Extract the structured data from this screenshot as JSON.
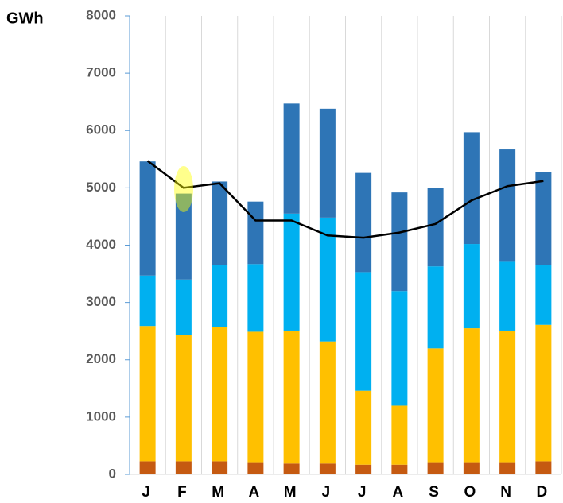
{
  "chart_data": {
    "type": "bar",
    "stacked": true,
    "y_label": "GWh",
    "categories": [
      "J",
      "F",
      "M",
      "A",
      "M",
      "J",
      "J",
      "A",
      "S",
      "O",
      "N",
      "D"
    ],
    "series": [
      {
        "color": "#c55a11",
        "values": [
          230,
          230,
          230,
          200,
          190,
          190,
          170,
          170,
          200,
          200,
          200,
          230
        ]
      },
      {
        "color": "#ffc000",
        "values": [
          2360,
          2210,
          2340,
          2290,
          2320,
          2130,
          1290,
          1030,
          2000,
          2350,
          2310,
          2380
        ]
      },
      {
        "color": "#00b0f0",
        "values": [
          880,
          960,
          1080,
          1180,
          2040,
          2160,
          2070,
          2000,
          1430,
          1470,
          1200,
          1040
        ]
      },
      {
        "color": "#2e75b6",
        "values": [
          1990,
          1500,
          1460,
          1090,
          1920,
          1900,
          1730,
          1720,
          1370,
          1950,
          1960,
          1620
        ]
      },
      {
        "type": "line",
        "color": "#000000",
        "values": [
          5470,
          5000,
          5080,
          4430,
          4430,
          4170,
          4130,
          4220,
          4370,
          4780,
          5030,
          5120
        ]
      }
    ],
    "ylim": [
      0,
      8000
    ],
    "yticks": [
      0,
      1000,
      2000,
      3000,
      4000,
      5000,
      6000,
      7000,
      8000
    ],
    "grid": true
  }
}
